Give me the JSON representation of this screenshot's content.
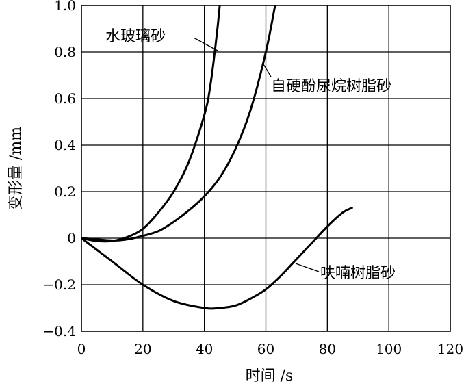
{
  "chart_data": {
    "type": "line",
    "xlabel": "时间 /s",
    "ylabel": "变形量 /mm",
    "xlim": [
      0,
      120
    ],
    "ylim": [
      -0.4,
      1.0
    ],
    "x_ticks": [
      0,
      20,
      40,
      60,
      80,
      100,
      120
    ],
    "y_ticks": [
      -0.4,
      -0.2,
      0,
      0.2,
      0.4,
      0.6,
      0.8,
      1.0
    ],
    "x_tick_labels": [
      "0",
      "20",
      "40",
      "60",
      "80",
      "100",
      "120"
    ],
    "y_tick_labels": [
      "-0.4",
      "-0.2",
      "0",
      "0.2",
      "0.4",
      "0.6",
      "0.8",
      "1.0"
    ],
    "grid": true,
    "series": [
      {
        "name": "水玻璃砂",
        "x": [
          0,
          5,
          10,
          15,
          20,
          25,
          30,
          35,
          40,
          42,
          44,
          45
        ],
        "y": [
          0,
          -0.012,
          -0.012,
          0.005,
          0.04,
          0.11,
          0.2,
          0.33,
          0.53,
          0.66,
          0.87,
          1.0
        ]
      },
      {
        "name": "自硬酚尿烷树脂砂",
        "x": [
          0,
          10,
          15,
          20,
          25,
          30,
          35,
          40,
          45,
          50,
          55,
          60,
          63
        ],
        "y": [
          0,
          -0.01,
          -0.005,
          0.01,
          0.03,
          0.07,
          0.12,
          0.18,
          0.26,
          0.38,
          0.55,
          0.8,
          1.0
        ]
      },
      {
        "name": "呋喃树脂砂",
        "x": [
          0,
          10,
          20,
          30,
          40,
          45,
          50,
          55,
          60,
          65,
          70,
          75,
          80,
          85,
          88
        ],
        "y": [
          0,
          -0.1,
          -0.2,
          -0.27,
          -0.3,
          -0.3,
          -0.29,
          -0.26,
          -0.22,
          -0.16,
          -0.09,
          -0.02,
          0.05,
          0.11,
          0.13
        ]
      }
    ],
    "annotations": [
      "水玻璃砂",
      "自硬酚尿烷树脂砂",
      "呋喃树脂砂"
    ]
  }
}
